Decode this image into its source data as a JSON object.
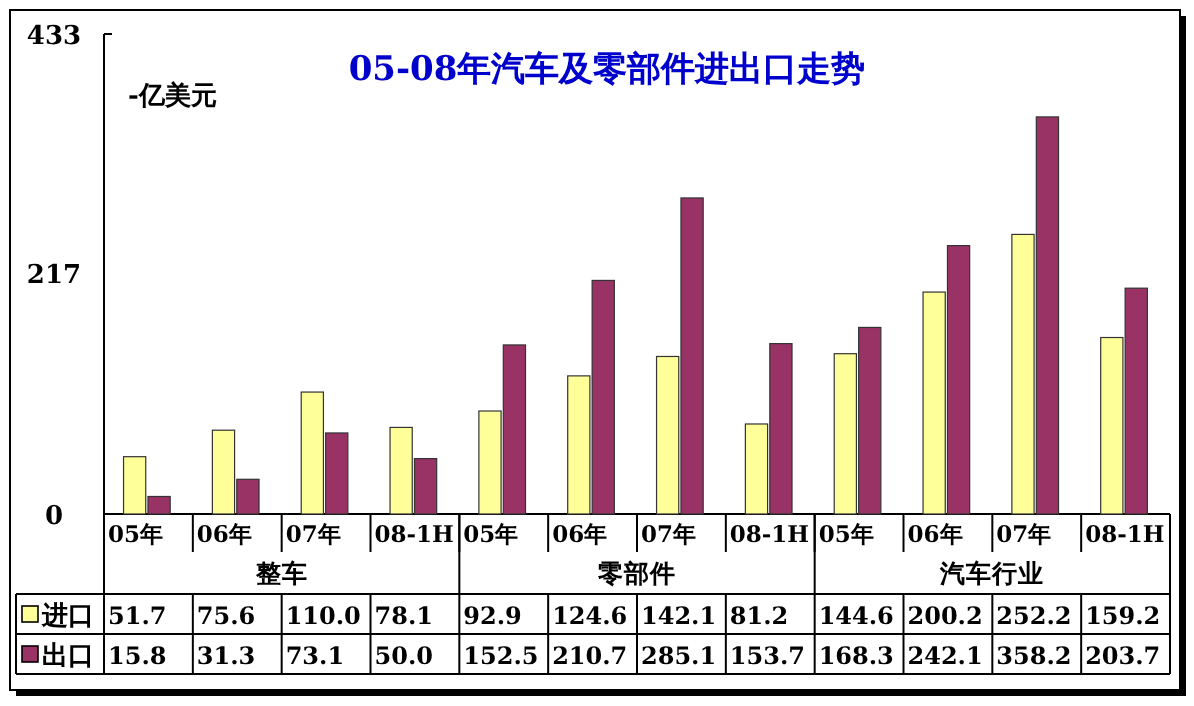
{
  "chart_data": {
    "type": "bar",
    "title": "05-08年汽车及零部件进出口走势",
    "categories": [
      "05年",
      "06年",
      "07年",
      "08-1H",
      "05年",
      "06年",
      "07年",
      "08-1H",
      "05年",
      "06年",
      "07年",
      "08-1H"
    ],
    "annotations": [
      "-亿美元",
      "整车",
      "零部件",
      "汽车行业"
    ],
    "series": [
      {
        "name": "进口",
        "color": "#ffff99",
        "values": [
          51.7,
          75.6,
          110.0,
          78.1,
          92.9,
          124.6,
          142.1,
          81.2,
          144.6,
          200.2,
          252.2,
          159.2
        ],
        "value_labels": [
          "51.7",
          "75.6",
          "110.0",
          "78.1",
          "92.9",
          "124.6",
          "142.1",
          "81.2",
          "144.6",
          "200.2",
          "252.2",
          "159.2"
        ]
      },
      {
        "name": "出口",
        "color": "#993366",
        "values": [
          15.8,
          31.3,
          73.1,
          50.0,
          152.5,
          210.7,
          285.1,
          153.7,
          168.3,
          242.1,
          358.2,
          203.7
        ],
        "value_labels": [
          "15.8",
          "31.3",
          "73.1",
          "50.0",
          "152.5",
          "210.7",
          "285.1",
          "153.7",
          "168.3",
          "242.1",
          "358.2",
          "203.7"
        ]
      }
    ],
    "ylim": [
      0,
      433
    ],
    "yticks": [
      0,
      217,
      433
    ],
    "legend": "bottom"
  }
}
